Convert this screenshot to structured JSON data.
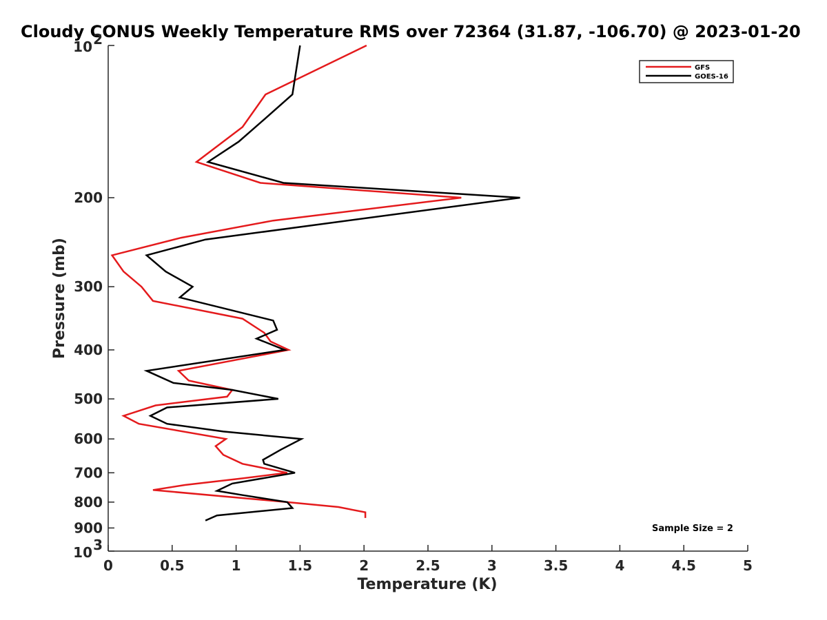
{
  "chart_data": {
    "type": "line",
    "title": "Cloudy CONUS Weekly Temperature RMS over 72364 (31.87, -106.70) @ 2023-01-20",
    "xlabel": "Temperature (K)",
    "ylabel": "Pressure (mb)",
    "xlim": [
      0,
      5
    ],
    "ylim": [
      1000,
      100
    ],
    "yscale": "log",
    "y_reversed": true,
    "grid": false,
    "legend_position": "top-right",
    "x_ticks": [
      "0",
      "0.5",
      "1",
      "1.5",
      "2",
      "2.5",
      "3",
      "3.5",
      "4",
      "4.5",
      "5"
    ],
    "y_ticks": [
      {
        "value": 100,
        "base": "10",
        "exp": "2"
      },
      {
        "value": 200,
        "label": "200"
      },
      {
        "value": 300,
        "label": "300"
      },
      {
        "value": 400,
        "label": "400"
      },
      {
        "value": 500,
        "label": "500"
      },
      {
        "value": 600,
        "label": "600"
      },
      {
        "value": 700,
        "label": "700"
      },
      {
        "value": 800,
        "label": "800"
      },
      {
        "value": 900,
        "label": "900"
      },
      {
        "value": 1000,
        "base": "10",
        "exp": "3"
      }
    ],
    "annotation": "Sample Size = 2",
    "series": [
      {
        "name": "GFS",
        "color": "#e41a1c",
        "points": [
          {
            "x": 2.02,
            "p": 100
          },
          {
            "x": 1.23,
            "p": 125
          },
          {
            "x": 1.05,
            "p": 145
          },
          {
            "x": 0.69,
            "p": 170
          },
          {
            "x": 1.19,
            "p": 187
          },
          {
            "x": 2.76,
            "p": 200
          },
          {
            "x": 1.29,
            "p": 222
          },
          {
            "x": 0.57,
            "p": 240
          },
          {
            "x": 0.03,
            "p": 260
          },
          {
            "x": 0.12,
            "p": 280
          },
          {
            "x": 0.26,
            "p": 300
          },
          {
            "x": 0.35,
            "p": 320
          },
          {
            "x": 1.05,
            "p": 347
          },
          {
            "x": 1.22,
            "p": 370
          },
          {
            "x": 1.27,
            "p": 385
          },
          {
            "x": 1.41,
            "p": 400
          },
          {
            "x": 0.55,
            "p": 440
          },
          {
            "x": 0.63,
            "p": 460
          },
          {
            "x": 0.97,
            "p": 480
          },
          {
            "x": 0.93,
            "p": 495
          },
          {
            "x": 0.37,
            "p": 515
          },
          {
            "x": 0.12,
            "p": 540
          },
          {
            "x": 0.24,
            "p": 560
          },
          {
            "x": 0.92,
            "p": 600
          },
          {
            "x": 0.84,
            "p": 620
          },
          {
            "x": 0.9,
            "p": 645
          },
          {
            "x": 1.05,
            "p": 672
          },
          {
            "x": 1.4,
            "p": 700
          },
          {
            "x": 1.05,
            "p": 718
          },
          {
            "x": 0.6,
            "p": 740
          },
          {
            "x": 0.35,
            "p": 757
          },
          {
            "x": 1.4,
            "p": 800
          },
          {
            "x": 1.8,
            "p": 818
          },
          {
            "x": 2.01,
            "p": 838
          },
          {
            "x": 2.01,
            "p": 860
          }
        ]
      },
      {
        "name": "GOES-16",
        "color": "#000000",
        "points": [
          {
            "x": 1.5,
            "p": 100
          },
          {
            "x": 1.44,
            "p": 125
          },
          {
            "x": 1.22,
            "p": 140
          },
          {
            "x": 1.02,
            "p": 155
          },
          {
            "x": 0.78,
            "p": 170
          },
          {
            "x": 1.37,
            "p": 187
          },
          {
            "x": 3.22,
            "p": 200
          },
          {
            "x": 0.76,
            "p": 242
          },
          {
            "x": 0.3,
            "p": 260
          },
          {
            "x": 0.45,
            "p": 280
          },
          {
            "x": 0.66,
            "p": 300
          },
          {
            "x": 0.56,
            "p": 315
          },
          {
            "x": 1.29,
            "p": 350
          },
          {
            "x": 1.32,
            "p": 365
          },
          {
            "x": 1.16,
            "p": 380
          },
          {
            "x": 1.38,
            "p": 400
          },
          {
            "x": 0.3,
            "p": 440
          },
          {
            "x": 0.51,
            "p": 465
          },
          {
            "x": 0.97,
            "p": 480
          },
          {
            "x": 1.33,
            "p": 500
          },
          {
            "x": 0.46,
            "p": 520
          },
          {
            "x": 0.33,
            "p": 540
          },
          {
            "x": 0.46,
            "p": 560
          },
          {
            "x": 0.9,
            "p": 580
          },
          {
            "x": 1.51,
            "p": 600
          },
          {
            "x": 1.35,
            "p": 630
          },
          {
            "x": 1.21,
            "p": 660
          },
          {
            "x": 1.22,
            "p": 672
          },
          {
            "x": 1.46,
            "p": 700
          },
          {
            "x": 0.97,
            "p": 735
          },
          {
            "x": 0.85,
            "p": 760
          },
          {
            "x": 1.05,
            "p": 775
          },
          {
            "x": 1.4,
            "p": 800
          },
          {
            "x": 1.44,
            "p": 822
          },
          {
            "x": 0.85,
            "p": 850
          },
          {
            "x": 0.76,
            "p": 870
          }
        ]
      }
    ]
  }
}
